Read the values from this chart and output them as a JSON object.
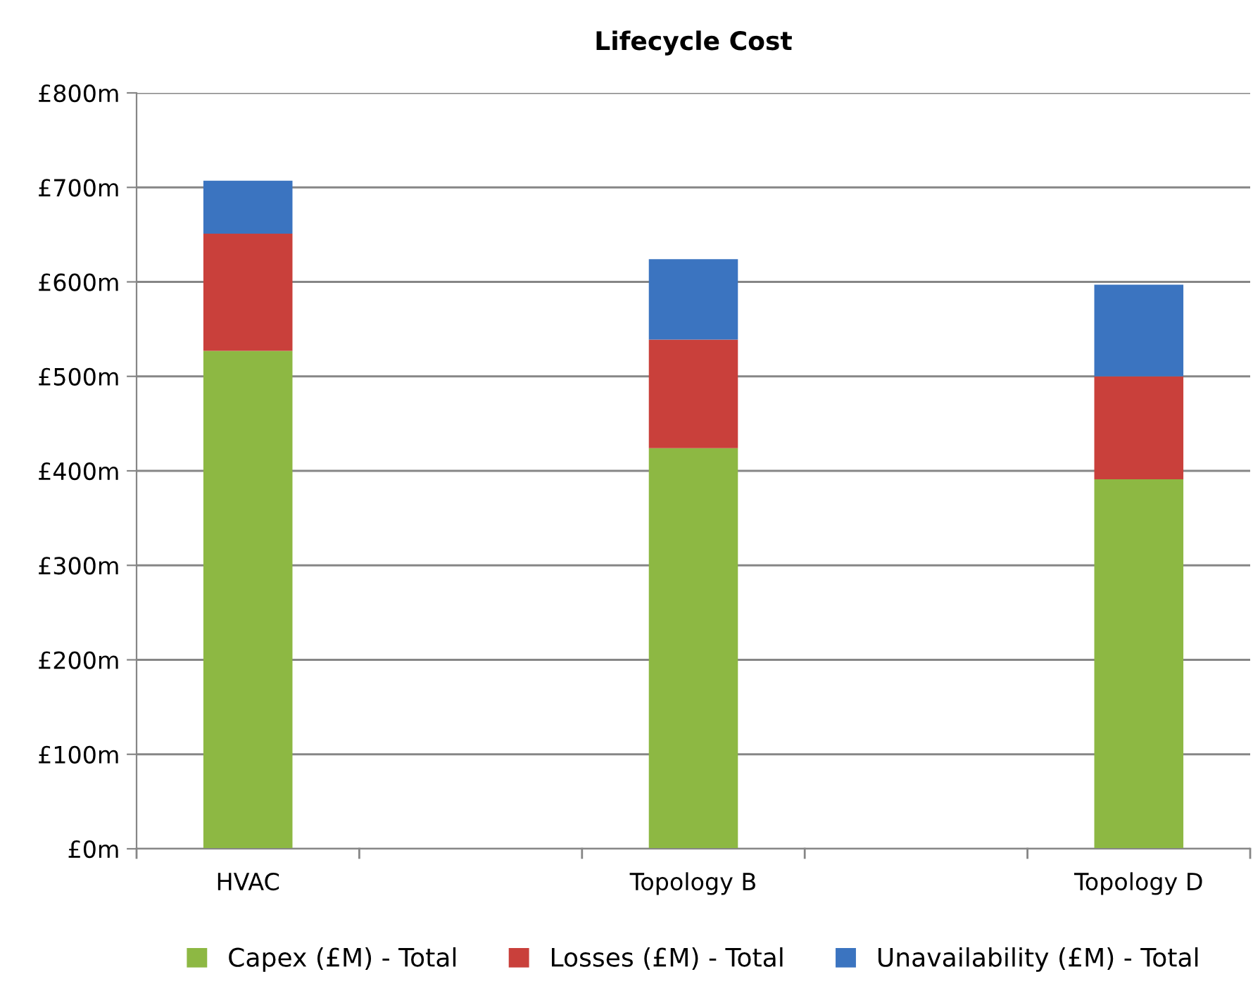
{
  "chart_data": {
    "type": "bar",
    "title": "Lifecycle Cost",
    "stacked": true,
    "categories": [
      "HVAC",
      null,
      "Topology B",
      null,
      "Topology D"
    ],
    "series": [
      {
        "name": "Capex (£M) - Total",
        "color": "#8db843",
        "values": [
          527,
          null,
          424,
          null,
          391
        ]
      },
      {
        "name": "Losses (£M) - Total",
        "color": "#c9403b",
        "values": [
          124,
          null,
          115,
          null,
          109
        ]
      },
      {
        "name": "Unavailability (£M) - Total",
        "color": "#3b74c0",
        "values": [
          56,
          null,
          85,
          null,
          97
        ]
      }
    ],
    "ylim": [
      0,
      800
    ],
    "yticks": [
      {
        "value": 0,
        "label": "£0m"
      },
      {
        "value": 100,
        "label": "£100m"
      },
      {
        "value": 200,
        "label": "£200m"
      },
      {
        "value": 300,
        "label": "£300m"
      },
      {
        "value": 400,
        "label": "£400m"
      },
      {
        "value": 500,
        "label": "£500m"
      },
      {
        "value": 600,
        "label": "£600m"
      },
      {
        "value": 700,
        "label": "£700m"
      },
      {
        "value": 800,
        "label": "£800m"
      }
    ],
    "grid": "y",
    "legend": "bottom"
  }
}
